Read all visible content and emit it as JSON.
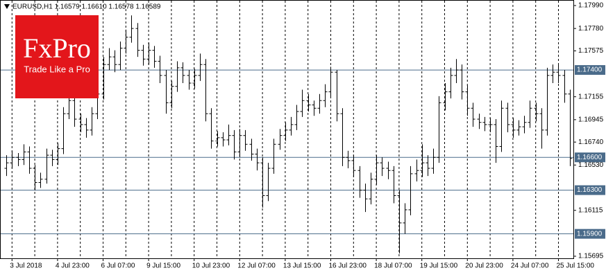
{
  "chart_data": {
    "type": "ohlc",
    "header": "EURUSD,H1  1.16579 1.16610 1.16578 1.16589",
    "logo": {
      "brand": "FxPro",
      "tagline": "Trade Like a Pro"
    },
    "color": "#000000",
    "level_color": "#4a6b8a",
    "ylim": [
      1.15695,
      1.1799
    ],
    "yticks": [
      {
        "value": 1.1799,
        "label": "1.17990"
      },
      {
        "value": 1.1778,
        "label": "1.17780"
      },
      {
        "value": 1.17575,
        "label": "1.17575"
      },
      {
        "value": 1.17155,
        "label": "1.17155"
      },
      {
        "value": 1.16945,
        "label": "1.16945"
      },
      {
        "value": 1.1674,
        "label": "1.16740"
      },
      {
        "value": 1.1653,
        "label": "1.16530"
      },
      {
        "value": 1.16115,
        "label": "1.16115"
      },
      {
        "value": 1.15695,
        "label": "1.15695"
      }
    ],
    "levels": [
      {
        "value": 1.174,
        "label": "1.17400"
      },
      {
        "value": 1.166,
        "label": "1.16600"
      },
      {
        "value": 1.163,
        "label": "1.16300"
      },
      {
        "value": 1.159,
        "label": "1.15900"
      }
    ],
    "categories": [
      null,
      "3 Jul 2018",
      null,
      null,
      null,
      null,
      null,
      null,
      null,
      "4 Jul 23:00",
      null,
      null,
      null,
      null,
      null,
      null,
      null,
      "6 Jul 07:00",
      null,
      null,
      null,
      null,
      null,
      null,
      null,
      "9 Jul 15:00",
      null,
      null,
      null,
      null,
      null,
      null,
      null,
      "10 Jul 23:00",
      null,
      null,
      null,
      null,
      null,
      null,
      null,
      "12 Jul 07:00",
      null,
      null,
      null,
      null,
      null,
      null,
      null,
      "13 Jul 15:00",
      null,
      null,
      null,
      null,
      null,
      null,
      null,
      "16 Jul 23:00",
      null,
      null,
      null,
      null,
      null,
      null,
      null,
      "18 Jul 07:00",
      null,
      null,
      null,
      null,
      null,
      null,
      null,
      "19 Jul 15:00",
      null,
      null,
      null,
      null,
      null,
      null,
      null,
      "20 Jul 23:00",
      null,
      null,
      null,
      null,
      null,
      null,
      null,
      "24 Jul 07:00",
      null,
      null,
      null,
      null,
      null,
      null,
      null,
      "25 Jul 15:00",
      null,
      null
    ],
    "ohlc": [
      [
        1.165,
        1.1662,
        1.1643,
        1.1655
      ],
      [
        1.1655,
        1.1666,
        1.165,
        1.166
      ],
      [
        1.166,
        1.1664,
        1.1652,
        1.1658
      ],
      [
        1.1658,
        1.1672,
        1.1653,
        1.1665
      ],
      [
        1.1665,
        1.167,
        1.1645,
        1.165
      ],
      [
        1.165,
        1.1653,
        1.163,
        1.1637
      ],
      [
        1.1637,
        1.1646,
        1.1632,
        1.164
      ],
      [
        1.164,
        1.1668,
        1.1636,
        1.1662
      ],
      [
        1.1662,
        1.1667,
        1.1652,
        1.1658
      ],
      [
        1.1658,
        1.1673,
        1.1653,
        1.1668
      ],
      [
        1.1668,
        1.1706,
        1.1663,
        1.17
      ],
      [
        1.17,
        1.172,
        1.1695,
        1.1712
      ],
      [
        1.1712,
        1.1716,
        1.1688,
        1.1695
      ],
      [
        1.1695,
        1.17,
        1.1683,
        1.169
      ],
      [
        1.169,
        1.1696,
        1.1678,
        1.1685
      ],
      [
        1.1685,
        1.1706,
        1.168,
        1.17
      ],
      [
        1.17,
        1.1724,
        1.1695,
        1.1718
      ],
      [
        1.1718,
        1.1752,
        1.1713,
        1.1745
      ],
      [
        1.1745,
        1.176,
        1.174,
        1.1752
      ],
      [
        1.1752,
        1.1758,
        1.1738,
        1.1745
      ],
      [
        1.1745,
        1.1766,
        1.174,
        1.176
      ],
      [
        1.176,
        1.1777,
        1.1755,
        1.177
      ],
      [
        1.177,
        1.179,
        1.1765,
        1.1778
      ],
      [
        1.1778,
        1.1783,
        1.1752,
        1.1758
      ],
      [
        1.1758,
        1.1763,
        1.1744,
        1.175
      ],
      [
        1.175,
        1.1765,
        1.1745,
        1.1758
      ],
      [
        1.1758,
        1.1762,
        1.1742,
        1.1748
      ],
      [
        1.1748,
        1.1753,
        1.1728,
        1.1735
      ],
      [
        1.1735,
        1.174,
        1.17,
        1.171
      ],
      [
        1.171,
        1.173,
        1.1705,
        1.1725
      ],
      [
        1.1725,
        1.1748,
        1.172,
        1.1742
      ],
      [
        1.1742,
        1.1747,
        1.1728,
        1.1735
      ],
      [
        1.1735,
        1.174,
        1.1722,
        1.1728
      ],
      [
        1.1728,
        1.1741,
        1.1723,
        1.1735
      ],
      [
        1.1735,
        1.1755,
        1.173,
        1.1745
      ],
      [
        1.1745,
        1.175,
        1.1693,
        1.17
      ],
      [
        1.17,
        1.1705,
        1.1668,
        1.1675
      ],
      [
        1.1675,
        1.1684,
        1.167,
        1.1678
      ],
      [
        1.1678,
        1.1683,
        1.167,
        1.1676
      ],
      [
        1.1676,
        1.169,
        1.1671,
        1.168
      ],
      [
        1.168,
        1.1685,
        1.1658,
        1.1665
      ],
      [
        1.1665,
        1.1686,
        1.166,
        1.168
      ],
      [
        1.168,
        1.1685,
        1.1666,
        1.1672
      ],
      [
        1.1672,
        1.1677,
        1.1657,
        1.1663
      ],
      [
        1.1663,
        1.1668,
        1.1648,
        1.1655
      ],
      [
        1.1655,
        1.166,
        1.1614,
        1.1625
      ],
      [
        1.1625,
        1.1655,
        1.162,
        1.165
      ],
      [
        1.165,
        1.1677,
        1.1645,
        1.1672
      ],
      [
        1.1672,
        1.1686,
        1.1667,
        1.168
      ],
      [
        1.168,
        1.1692,
        1.1675,
        1.1685
      ],
      [
        1.1685,
        1.1697,
        1.168,
        1.169
      ],
      [
        1.169,
        1.1708,
        1.1685,
        1.1702
      ],
      [
        1.1702,
        1.1722,
        1.1697,
        1.1712
      ],
      [
        1.1712,
        1.1718,
        1.1702,
        1.1708
      ],
      [
        1.1708,
        1.1712,
        1.1698,
        1.1705
      ],
      [
        1.1705,
        1.1718,
        1.17,
        1.1712
      ],
      [
        1.1712,
        1.1727,
        1.1706,
        1.172
      ],
      [
        1.172,
        1.1743,
        1.1715,
        1.1738
      ],
      [
        1.1738,
        1.174,
        1.1693,
        1.17
      ],
      [
        1.17,
        1.1705,
        1.1652,
        1.166
      ],
      [
        1.166,
        1.1666,
        1.165,
        1.1657
      ],
      [
        1.1657,
        1.1662,
        1.1642,
        1.1648
      ],
      [
        1.1648,
        1.1652,
        1.1623,
        1.163
      ],
      [
        1.163,
        1.1636,
        1.161,
        1.1622
      ],
      [
        1.1622,
        1.1646,
        1.1617,
        1.164
      ],
      [
        1.164,
        1.1662,
        1.1635,
        1.1655
      ],
      [
        1.1655,
        1.166,
        1.1643,
        1.165
      ],
      [
        1.165,
        1.1656,
        1.164,
        1.1648
      ],
      [
        1.1648,
        1.1652,
        1.1618,
        1.1625
      ],
      [
        1.1625,
        1.163,
        1.1572,
        1.16
      ],
      [
        1.16,
        1.1618,
        1.159,
        1.1612
      ],
      [
        1.1612,
        1.1652,
        1.1607,
        1.1645
      ],
      [
        1.1645,
        1.1658,
        1.1638,
        1.1648
      ],
      [
        1.1648,
        1.1672,
        1.1642,
        1.1655
      ],
      [
        1.1655,
        1.1662,
        1.1643,
        1.165
      ],
      [
        1.165,
        1.1668,
        1.1645,
        1.166
      ],
      [
        1.166,
        1.1716,
        1.1655,
        1.171
      ],
      [
        1.171,
        1.1728,
        1.1703,
        1.172
      ],
      [
        1.172,
        1.1742,
        1.1714,
        1.1735
      ],
      [
        1.1735,
        1.175,
        1.1728,
        1.174
      ],
      [
        1.174,
        1.1745,
        1.1713,
        1.172
      ],
      [
        1.172,
        1.1726,
        1.1698,
        1.1705
      ],
      [
        1.1705,
        1.171,
        1.1688,
        1.1695
      ],
      [
        1.1695,
        1.17,
        1.1686,
        1.1692
      ],
      [
        1.1692,
        1.1697,
        1.1684,
        1.169
      ],
      [
        1.169,
        1.1696,
        1.1683,
        1.169
      ],
      [
        1.169,
        1.1695,
        1.1655,
        1.167
      ],
      [
        1.167,
        1.1712,
        1.1665,
        1.1705
      ],
      [
        1.1705,
        1.171,
        1.1683,
        1.169
      ],
      [
        1.169,
        1.1696,
        1.1678,
        1.1685
      ],
      [
        1.1685,
        1.1694,
        1.168,
        1.1688
      ],
      [
        1.1688,
        1.1698,
        1.1682,
        1.1692
      ],
      [
        1.1692,
        1.1712,
        1.1687,
        1.1705
      ],
      [
        1.1705,
        1.171,
        1.1693,
        1.17
      ],
      [
        1.17,
        1.1705,
        1.1668,
        1.1685
      ],
      [
        1.1685,
        1.1742,
        1.168,
        1.1735
      ],
      [
        1.1735,
        1.1745,
        1.1728,
        1.1738
      ],
      [
        1.1738,
        1.1745,
        1.1728,
        1.1735
      ],
      [
        1.1735,
        1.174,
        1.171,
        1.1718
      ],
      [
        1.1718,
        1.1722,
        1.1652,
        1.1659
      ]
    ]
  }
}
